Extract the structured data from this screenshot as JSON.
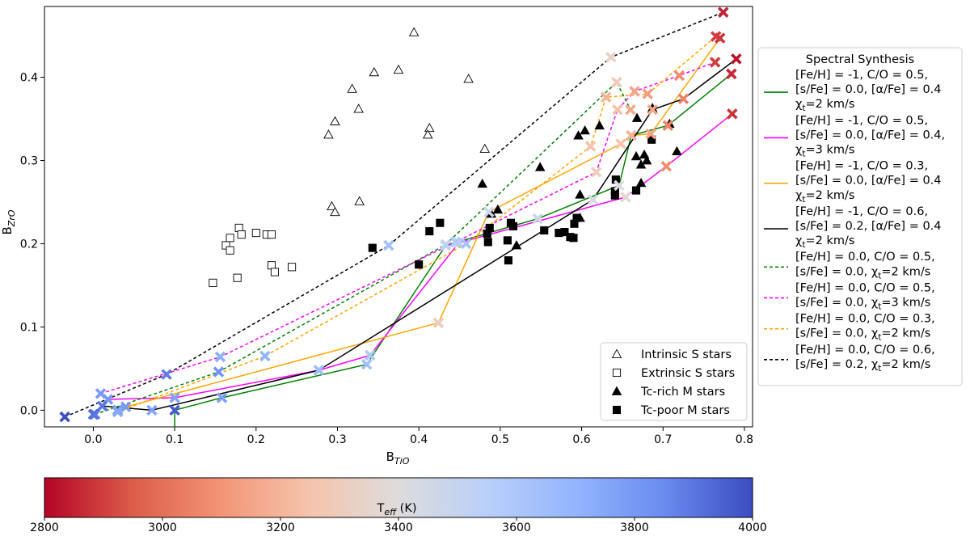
{
  "chart_data": {
    "type": "scatter",
    "xlabel_main": "B",
    "xlabel_sub": "TiO",
    "ylabel_main": "B",
    "ylabel_sub": "ZrO",
    "xlim": [
      -0.06,
      0.81
    ],
    "ylim": [
      -0.02,
      0.485
    ],
    "xticks": [
      0.0,
      0.1,
      0.2,
      0.3,
      0.4,
      0.5,
      0.6,
      0.7,
      0.8
    ],
    "xtick_labels": [
      "0.0",
      "0.1",
      "0.2",
      "0.3",
      "0.4",
      "0.5",
      "0.6",
      "0.7",
      "0.8"
    ],
    "yticks": [
      0.0,
      0.1,
      0.2,
      0.3,
      0.4
    ],
    "ytick_labels": [
      "0.0",
      "0.1",
      "0.2",
      "0.3",
      "0.4"
    ],
    "observations": [
      {
        "name": "Intrinsic S stars",
        "marker": "triangle-open",
        "points": [
          [
            0.394,
            0.454
          ],
          [
            0.345,
            0.406
          ],
          [
            0.375,
            0.409
          ],
          [
            0.461,
            0.398
          ],
          [
            0.318,
            0.386
          ],
          [
            0.326,
            0.362
          ],
          [
            0.297,
            0.347
          ],
          [
            0.413,
            0.339
          ],
          [
            0.411,
            0.331
          ],
          [
            0.289,
            0.331
          ],
          [
            0.481,
            0.314
          ],
          [
            0.327,
            0.251
          ],
          [
            0.293,
            0.245
          ],
          [
            0.297,
            0.238
          ]
        ]
      },
      {
        "name": "Extrinsic S stars",
        "marker": "square-open",
        "points": [
          [
            0.179,
            0.219
          ],
          [
            0.168,
            0.207
          ],
          [
            0.182,
            0.211
          ],
          [
            0.2,
            0.213
          ],
          [
            0.213,
            0.211
          ],
          [
            0.219,
            0.211
          ],
          [
            0.163,
            0.198
          ],
          [
            0.168,
            0.192
          ],
          [
            0.219,
            0.174
          ],
          [
            0.244,
            0.172
          ],
          [
            0.223,
            0.166
          ],
          [
            0.177,
            0.159
          ],
          [
            0.147,
            0.153
          ]
        ]
      },
      {
        "name": "Tc-rich M stars",
        "marker": "triangle-filled",
        "points": [
          [
            0.668,
            0.351
          ],
          [
            0.708,
            0.344
          ],
          [
            0.687,
            0.363
          ],
          [
            0.604,
            0.336
          ],
          [
            0.596,
            0.33
          ],
          [
            0.622,
            0.342
          ],
          [
            0.717,
            0.311
          ],
          [
            0.667,
            0.305
          ],
          [
            0.677,
            0.307
          ],
          [
            0.673,
            0.295
          ],
          [
            0.68,
            0.3
          ],
          [
            0.549,
            0.292
          ],
          [
            0.478,
            0.272
          ],
          [
            0.673,
            0.273
          ],
          [
            0.598,
            0.259
          ],
          [
            0.497,
            0.241
          ],
          [
            0.489,
            0.236
          ],
          [
            0.52,
            0.198
          ],
          [
            0.598,
            0.231
          ]
        ]
      },
      {
        "name": "Tc-poor M stars",
        "marker": "square-filled",
        "points": [
          [
            0.686,
            0.325
          ],
          [
            0.642,
            0.277
          ],
          [
            0.667,
            0.264
          ],
          [
            0.641,
            0.258
          ],
          [
            0.641,
            0.263
          ],
          [
            0.591,
            0.224
          ],
          [
            0.594,
            0.231
          ],
          [
            0.579,
            0.214
          ],
          [
            0.586,
            0.208
          ],
          [
            0.59,
            0.207
          ],
          [
            0.572,
            0.213
          ],
          [
            0.554,
            0.216
          ],
          [
            0.513,
            0.225
          ],
          [
            0.516,
            0.221
          ],
          [
            0.487,
            0.219
          ],
          [
            0.484,
            0.212
          ],
          [
            0.509,
            0.204
          ],
          [
            0.485,
            0.202
          ],
          [
            0.426,
            0.225
          ],
          [
            0.413,
            0.215
          ],
          [
            0.343,
            0.195
          ],
          [
            0.4,
            0.175
          ],
          [
            0.51,
            0.18
          ]
        ]
      }
    ],
    "legend_observations": [
      "Intrinsic S stars",
      "Extrinsic S stars",
      "Tc-rich M stars",
      "Tc-poor M stars"
    ],
    "models_title": "Spectral Synthesis",
    "models": [
      {
        "color": "#008000",
        "dash": false,
        "label_lines": [
          "[Fe/H] = -1, C/O = 0.5,",
          "[s/Fe] = 0.0, [α/Fe] = 0.4",
          "χ_t=2 km/s"
        ],
        "x": [
          0.1,
          0.1,
          0.158,
          0.336,
          0.433,
          0.546,
          0.646,
          0.661,
          0.706,
          0.784
        ],
        "y": [
          -0.02,
          0.0,
          0.015,
          0.055,
          0.198,
          0.23,
          0.27,
          0.33,
          0.342,
          0.404
        ],
        "teff": [
          3960,
          3960,
          3780,
          3640,
          3560,
          3480,
          3400,
          3200,
          3050,
          2860
        ]
      },
      {
        "color": "#ff00ff",
        "dash": false,
        "label_lines": [
          "[Fe/H] = -1, C/O = 0.5,",
          "[s/Fe] = 0.0, [α/Fe] = 0.4,",
          "χ_t=3 km/s"
        ],
        "x": [
          0.018,
          0.1,
          0.277,
          0.34,
          0.449,
          0.654,
          0.704,
          0.785
        ],
        "y": [
          0.013,
          0.015,
          0.048,
          0.066,
          0.201,
          0.256,
          0.293,
          0.356
        ],
        "teff": [
          3800,
          3760,
          3680,
          3600,
          3530,
          3370,
          3080,
          2880
        ]
      },
      {
        "color": "#ffa500",
        "dash": false,
        "label_lines": [
          "[Fe/H] = -1, C/O = 0.3,",
          "[s/Fe] = 0.0, [α/Fe] = 0.4",
          "χ_t=2 km/s"
        ],
        "x": [
          0.03,
          0.04,
          0.424,
          0.486,
          0.648,
          0.661,
          0.685,
          0.77
        ],
        "y": [
          0.0,
          0.004,
          0.105,
          0.238,
          0.32,
          0.33,
          0.332,
          0.447
        ],
        "teff": [
          3820,
          3800,
          3300,
          3480,
          3250,
          3200,
          3150,
          2880
        ]
      },
      {
        "color": "#000000",
        "dash": false,
        "label_lines": [
          "[Fe/H] = -1, C/O = 0.6,",
          "[s/Fe] = 0.2, [α/Fe] = 0.4",
          "χ_t=2 km/s"
        ],
        "x": [
          0.0,
          0.011,
          0.072,
          0.277,
          0.614,
          0.687,
          0.725,
          0.79
        ],
        "y": [
          -0.005,
          0.005,
          0.0,
          0.048,
          0.253,
          0.361,
          0.374,
          0.422
        ],
        "teff": [
          3940,
          3900,
          3760,
          3650,
          3420,
          3160,
          3050,
          2820
        ]
      },
      {
        "color": "#008000",
        "dash": true,
        "label_lines": [
          "[Fe/H] = 0.0, C/O = 0.5,",
          "[s/Fe] = 0.0, χ_t=2 km/s"
        ],
        "x": [
          0.002,
          0.154,
          0.433,
          0.643,
          0.66
        ],
        "y": [
          -0.005,
          0.046,
          0.199,
          0.394,
          0.361
        ],
        "teff": [
          3900,
          3820,
          3520,
          3290,
          3160
        ]
      },
      {
        "color": "#ff00ff",
        "dash": true,
        "label_lines": [
          "[Fe/H] = 0.0, C/O = 0.5,",
          "[s/Fe] = 0.0, χ_t=3 km/s"
        ],
        "x": [
          0.009,
          0.156,
          0.445,
          0.618,
          0.644,
          0.665,
          0.72,
          0.764
        ],
        "y": [
          0.02,
          0.064,
          0.202,
          0.286,
          0.361,
          0.383,
          0.402,
          0.418
        ],
        "teff": [
          3800,
          3720,
          3580,
          3300,
          3250,
          3150,
          3080,
          2900
        ]
      },
      {
        "color": "#ffa500",
        "dash": true,
        "label_lines": [
          "[Fe/H] = 0.0, C/O = 0.3,",
          "[s/Fe] = 0.0, χ_t=2 km/s"
        ],
        "x": [
          0.03,
          0.211,
          0.458,
          0.611,
          0.63,
          0.681,
          0.765
        ],
        "y": [
          -0.002,
          0.065,
          0.2,
          0.317,
          0.376,
          0.38,
          0.449
        ],
        "teff": [
          3740,
          3700,
          3620,
          3250,
          3200,
          3130,
          2900
        ]
      },
      {
        "color": "#000000",
        "dash": true,
        "label_lines": [
          "[Fe/H] = 0.0, C/O = 0.6,",
          "[s/Fe] = 0.2, χ_t=2 km/s"
        ],
        "x": [
          -0.035,
          0.09,
          0.363,
          0.636,
          0.774
        ],
        "y": [
          -0.008,
          0.043,
          0.198,
          0.424,
          0.478
        ],
        "teff": [
          3990,
          3880,
          3640,
          3330,
          2850
        ]
      }
    ],
    "colorbar": {
      "label_main": "T",
      "label_sub": "eff",
      "label_unit": " (K)",
      "range": [
        2800,
        4000
      ],
      "ticks": [
        2800,
        3000,
        3200,
        3400,
        3600,
        3800,
        4000
      ],
      "tick_labels": [
        "2800",
        "3000",
        "3200",
        "3400",
        "3600",
        "3800",
        "4000"
      ],
      "colormap": "coolwarm_r",
      "stops": [
        "#b40426",
        "#dc5d4a",
        "#f39577",
        "#f5c4ac",
        "#dddcdc",
        "#b9d0f9",
        "#93b5fe",
        "#6a8bef",
        "#3b4cc0"
      ]
    }
  }
}
